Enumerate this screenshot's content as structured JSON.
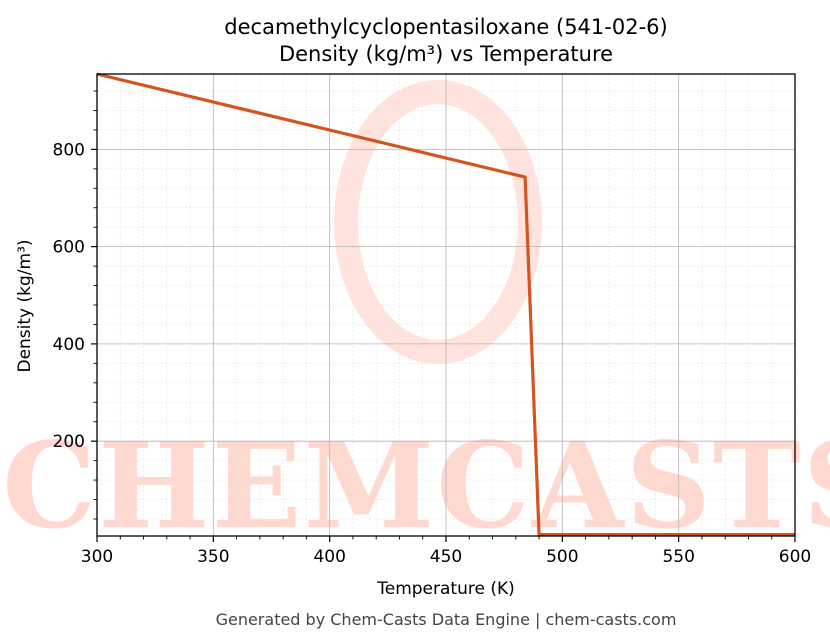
{
  "chart_data": {
    "type": "line",
    "title_lines": [
      "decamethylcyclopentasiloxane (541-02-6)",
      "Density (kg/m³) vs Temperature"
    ],
    "xlabel": "Temperature (K)",
    "ylabel": "Density (kg/m³)",
    "xlim": [
      300,
      600
    ],
    "ylim": [
      5,
      955
    ],
    "x_ticks": [
      300,
      350,
      400,
      450,
      500,
      550,
      600
    ],
    "y_ticks": [
      200,
      400,
      600,
      800
    ],
    "grid": true,
    "series": [
      {
        "color": "#d4541f",
        "x": [
          300,
          484,
          490,
          600
        ],
        "y": [
          955,
          743,
          8,
          8
        ]
      }
    ]
  },
  "watermark": {
    "text": "CHEMCASTS",
    "color": "#ffd9d0"
  },
  "footer": "Generated by Chem-Casts Data Engine | chem-casts.com"
}
